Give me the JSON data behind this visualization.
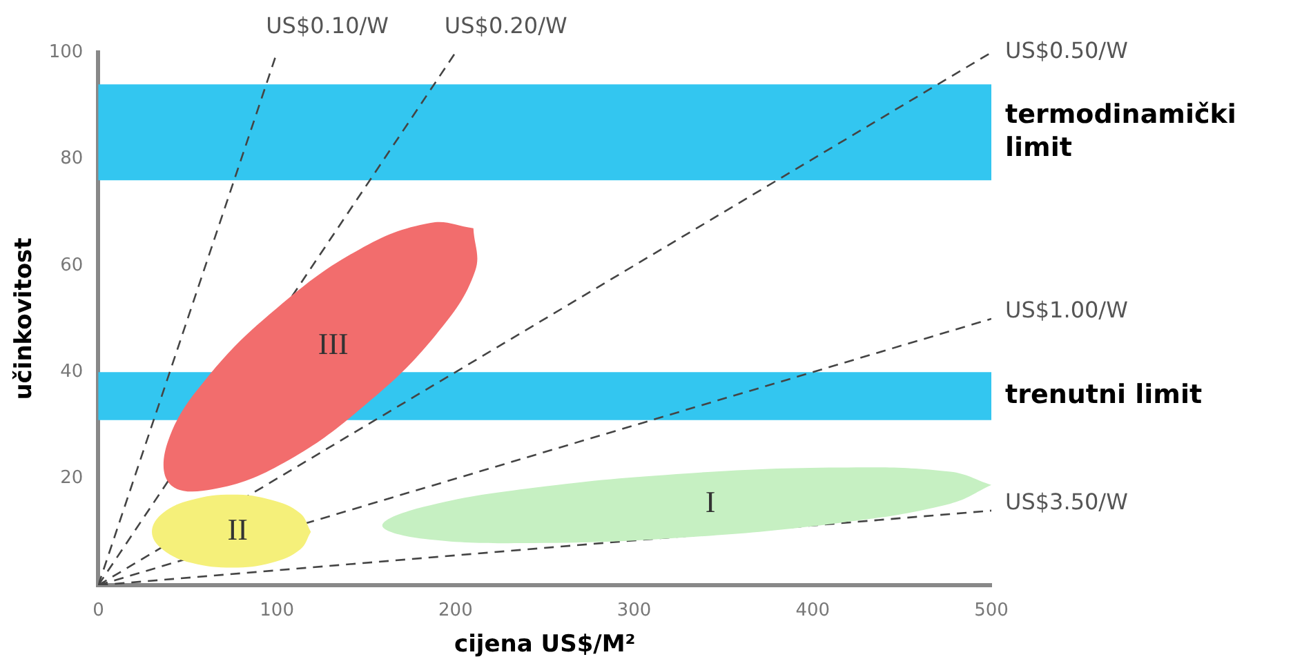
{
  "chart_data": {
    "type": "line",
    "xlabel": "cijena US$/M²",
    "ylabel": "učinkovitost",
    "xlim": [
      0,
      500
    ],
    "ylim": [
      0,
      100
    ],
    "xticks": [
      0,
      100,
      200,
      300,
      400,
      500
    ],
    "yticks": [
      20,
      40,
      60,
      80,
      100
    ],
    "grid": false,
    "legend": false,
    "marker": "none",
    "bands": [
      {
        "axis": "y",
        "from": 76,
        "to": 94,
        "label": "termodinamički limit",
        "color": "#33c6f0"
      },
      {
        "axis": "y",
        "from": 31,
        "to": 40,
        "label": "trenutni limit",
        "color": "#33c6f0"
      }
    ],
    "series": [
      {
        "type": "area",
        "name": "III",
        "color": "#f26d6d",
        "x": [
          210,
          211,
          189,
          150,
          104,
          64,
          40,
          39,
          61,
          100,
          146,
          186,
          210
        ],
        "values": [
          67,
          59,
          47,
          34,
          23,
          18,
          19,
          27,
          39,
          52,
          63,
          68,
          67
        ]
      },
      {
        "type": "area",
        "name": "II",
        "color": "#f5f07a",
        "x": [
          119,
          113,
          97,
          75,
          52,
          36,
          30,
          36,
          52,
          75,
          97,
          113,
          119
        ],
        "values": [
          10,
          13.5,
          16,
          17,
          16,
          13.5,
          10,
          6.7,
          4.2,
          3.3,
          4.2,
          6.7,
          10
        ]
      },
      {
        "type": "area",
        "name": "I",
        "color": "#c6f0c2",
        "x": [
          500,
          477,
          415,
          330,
          244,
          182,
          159,
          182,
          244,
          330,
          415,
          477,
          500
        ],
        "values": [
          18.8,
          21.3,
          22.1,
          21,
          18.3,
          14.7,
          11.2,
          8.7,
          7.9,
          9,
          11.7,
          15.3,
          18.8
        ]
      },
      {
        "name": "US$0.10/W",
        "color": "#444444",
        "line_style": "dashed",
        "x": [
          0,
          100
        ],
        "values": [
          0,
          100
        ]
      },
      {
        "name": "US$0.20/W",
        "color": "#444444",
        "line_style": "dashed",
        "x": [
          0,
          200
        ],
        "values": [
          0,
          100
        ]
      },
      {
        "name": "US$0.50/W",
        "color": "#444444",
        "line_style": "dashed",
        "x": [
          0,
          500
        ],
        "values": [
          0,
          100
        ]
      },
      {
        "name": "US$1.00/W",
        "color": "#444444",
        "line_style": "dashed",
        "x": [
          0,
          500
        ],
        "values": [
          0,
          50
        ]
      },
      {
        "name": "US$3.50/W",
        "color": "#444444",
        "line_style": "dashed",
        "x": [
          0,
          500
        ],
        "values": [
          0,
          14
        ]
      }
    ]
  }
}
